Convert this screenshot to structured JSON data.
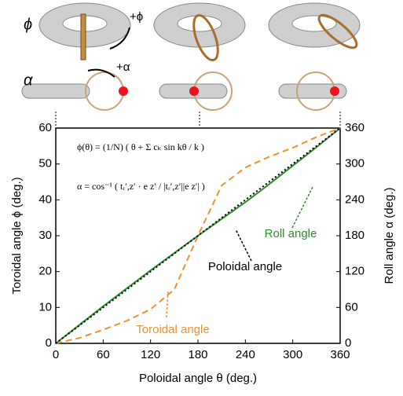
{
  "chart_data": {
    "type": "line",
    "xlabel": "Poloidal angle  θ (deg.)",
    "ylabel": "Toroidal angle  ϕ (deg.)",
    "y2label": "Roll angle  α (deg.)",
    "x": [
      0,
      30,
      60,
      90,
      120,
      150,
      180,
      210,
      240,
      270,
      300,
      330,
      360
    ],
    "xlim": [
      0,
      360
    ],
    "xticks": [
      0,
      60,
      120,
      180,
      240,
      300,
      360
    ],
    "ylim": [
      0,
      60
    ],
    "yticks": [
      0,
      10,
      20,
      30,
      40,
      50,
      60
    ],
    "y2lim": [
      0,
      360
    ],
    "y2ticks": [
      0,
      60,
      120,
      180,
      240,
      300,
      360
    ],
    "series": [
      {
        "name": "Toroidal angle",
        "color": "#f0922b",
        "dash": "8,5",
        "values": [
          0,
          1.5,
          3.8,
          6.3,
          9.5,
          15,
          30,
          44,
          49,
          52,
          54.5,
          57.5,
          60
        ]
      },
      {
        "name": "Roll angle",
        "color": "#2e8b2e",
        "dash": "none",
        "axis": "y2",
        "values": [
          0,
          31,
          62,
          92,
          122,
          151,
          180,
          208,
          236,
          266,
          297,
          328,
          360
        ]
      },
      {
        "name": "Poloidal angle",
        "color": "#000000",
        "dash": "2,3",
        "values": [
          0,
          5,
          10,
          15,
          20,
          25,
          30,
          35,
          40,
          45,
          50,
          55,
          60
        ]
      }
    ],
    "equations": [
      "ϕ(θ) = (1/N) ( θ + Σ cₖ sin kθ / k )",
      "α = cos⁻¹ ( tᵣ′,z′ · e z′ / |tᵣ′,z′||e z′| )"
    ],
    "illustration_labels": {
      "phi": "ϕ",
      "plus_phi": "+ϕ",
      "alpha": "α",
      "plus_alpha": "+α"
    }
  }
}
